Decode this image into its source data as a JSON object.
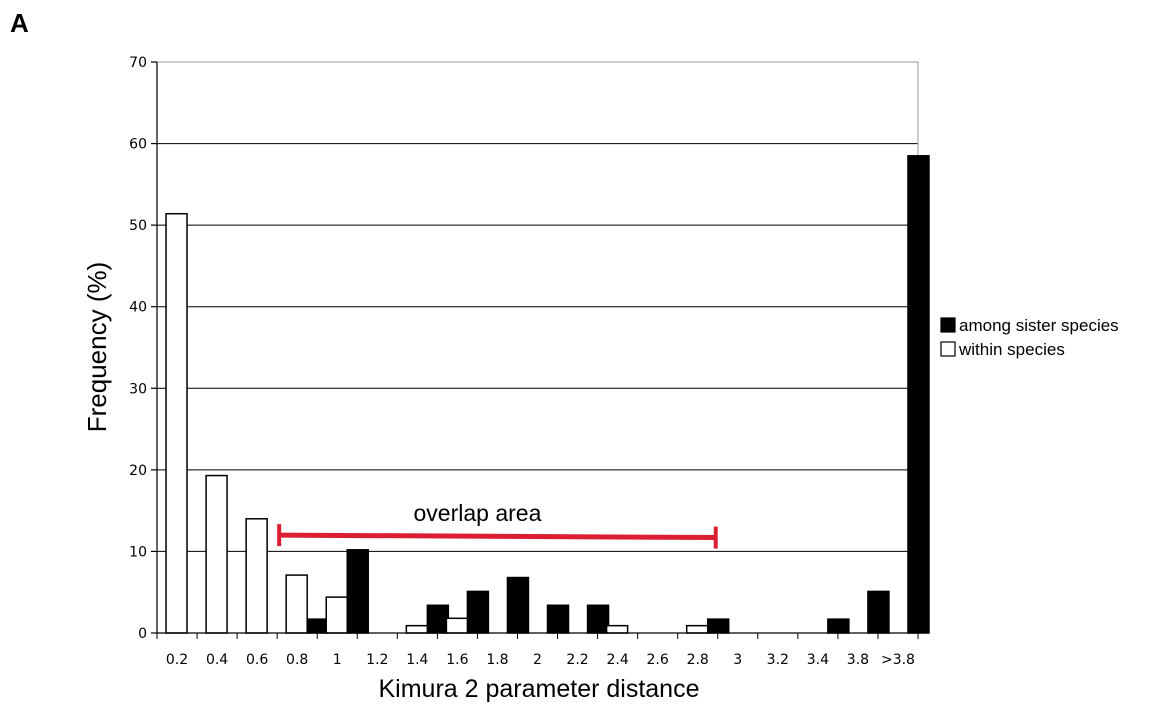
{
  "panel_label": "A",
  "chart_data": {
    "type": "bar",
    "title": "",
    "xlabel": "Kimura 2 parameter distance",
    "ylabel": "Frequency (%)",
    "ylim": [
      0,
      70
    ],
    "yticks": [
      0,
      10,
      20,
      30,
      40,
      50,
      60,
      70
    ],
    "categories": [
      "0.2",
      "0.4",
      "0.6",
      "0.8",
      "1",
      "1.2",
      "1.4",
      "1.6",
      "1.8",
      "2",
      "2.2",
      "2.4",
      "2.6",
      "2.8",
      "3",
      "3.2",
      "3.4",
      "3.8",
      ">3.8"
    ],
    "grid": true,
    "legend_position": "right",
    "series": [
      {
        "name": "among sister species",
        "color": "#000000",
        "values": [
          0,
          0,
          0,
          1.7,
          10.2,
          0,
          3.4,
          5.1,
          6.8,
          3.4,
          3.4,
          0,
          0,
          1.7,
          0,
          0,
          1.7,
          5.1,
          58.5
        ]
      },
      {
        "name": "within species",
        "color": "#ffffff",
        "values": [
          51.4,
          19.3,
          14.0,
          7.1,
          4.4,
          0,
          0.9,
          1.8,
          0,
          0,
          0,
          0.9,
          0,
          0.9,
          0,
          0,
          0,
          0,
          0
        ]
      }
    ],
    "annotation": {
      "text": "overlap area",
      "color": "#dc1e32",
      "x_start": 0.8,
      "x_end": 2.8,
      "y_start": 12.0,
      "y_end": 11.7
    }
  }
}
